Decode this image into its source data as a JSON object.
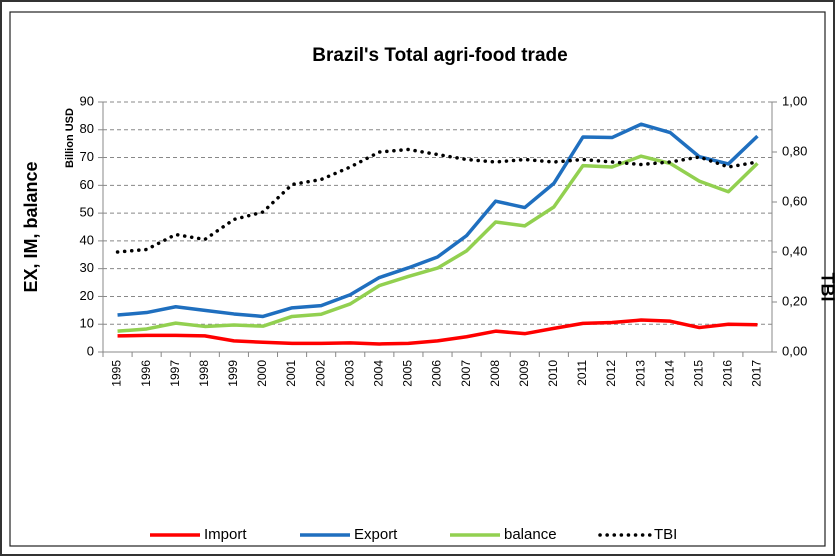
{
  "chart_data": {
    "type": "line",
    "title": "Brazil's Total agri-food trade",
    "ylabel": "EX, IM, balance",
    "yunit": "Billion USD",
    "y2label": "TBI",
    "categories": [
      "1995",
      "1996",
      "1997",
      "1998",
      "1999",
      "2000",
      "2001",
      "2002",
      "2003",
      "2004",
      "2005",
      "2006",
      "2007",
      "2008",
      "2009",
      "2010",
      "2011",
      "2012",
      "2013",
      "2014",
      "2015",
      "2016",
      "2017"
    ],
    "series": [
      {
        "name": "Import",
        "color": "#ff0000",
        "line_style": "solid",
        "values": [
          5.8,
          6.0,
          6.0,
          5.8,
          4.0,
          3.5,
          3.1,
          3.1,
          3.3,
          2.9,
          3.1,
          4.0,
          5.5,
          7.5,
          6.6,
          8.5,
          10.3,
          10.6,
          11.5,
          11.1,
          8.8,
          10.0,
          9.8
        ]
      },
      {
        "name": "Export",
        "color": "#1f6fbf",
        "line_style": "solid",
        "values": [
          13.3,
          14.2,
          16.3,
          15.0,
          13.7,
          12.8,
          15.9,
          16.7,
          20.6,
          26.8,
          30.3,
          34.2,
          41.9,
          54.3,
          52.0,
          60.7,
          77.4,
          77.2,
          82.0,
          79.0,
          70.3,
          67.7,
          77.7
        ]
      },
      {
        "name": "balance",
        "color": "#92d050",
        "line_style": "solid",
        "values": [
          7.5,
          8.3,
          10.4,
          9.2,
          9.7,
          9.3,
          12.8,
          13.6,
          17.3,
          23.9,
          27.2,
          30.2,
          36.4,
          46.8,
          45.4,
          52.2,
          67.1,
          66.6,
          70.5,
          67.9,
          61.5,
          57.7,
          67.9
        ]
      },
      {
        "name": "TBI",
        "color": "#000000",
        "line_style": "dotted",
        "axis": "y2",
        "values": [
          0.4,
          0.41,
          0.47,
          0.45,
          0.53,
          0.56,
          0.67,
          0.69,
          0.74,
          0.8,
          0.81,
          0.79,
          0.77,
          0.76,
          0.77,
          0.76,
          0.77,
          0.76,
          0.75,
          0.76,
          0.78,
          0.74,
          0.76
        ]
      }
    ],
    "ylim": [
      0,
      90
    ],
    "yticks": [
      0,
      10,
      20,
      30,
      40,
      50,
      60,
      70,
      80,
      90
    ],
    "y2lim": [
      0,
      1
    ],
    "y2ticks": [
      {
        "value": 0,
        "label": "0,00"
      },
      {
        "value": 0.2,
        "label": "0,20"
      },
      {
        "value": 0.4,
        "label": "0,40"
      },
      {
        "value": 0.6,
        "label": "0,60"
      },
      {
        "value": 0.8,
        "label": "0,80"
      },
      {
        "value": 1,
        "label": "1,00"
      }
    ],
    "grid": true,
    "legend": "bottom"
  }
}
